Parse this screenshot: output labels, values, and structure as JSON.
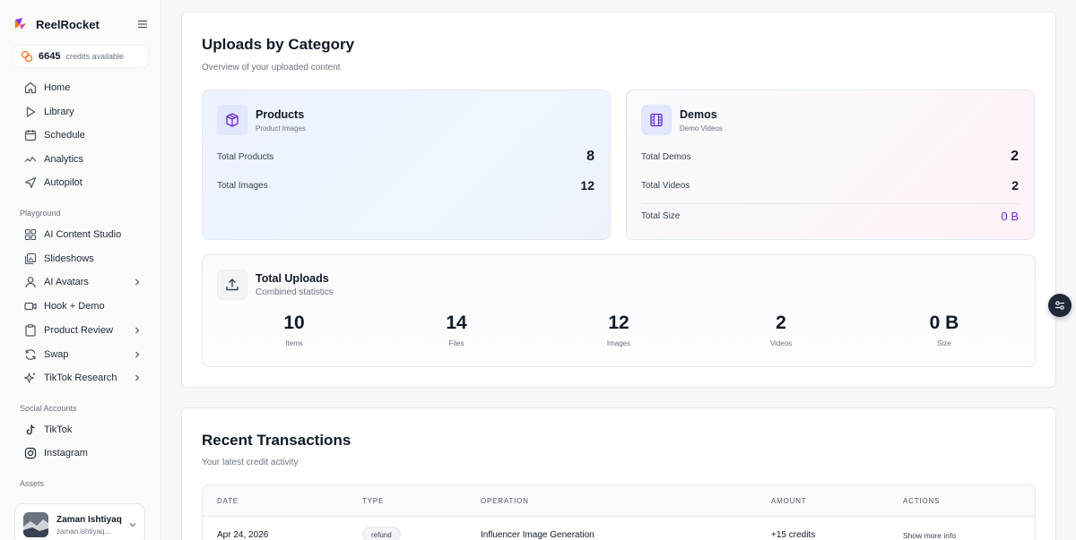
{
  "sidebar": {
    "brand": "ReelRocket",
    "credits": {
      "amount": "6645",
      "label": "credits available"
    },
    "nav": [
      {
        "label": "Home",
        "icon": "home-icon"
      },
      {
        "label": "Library",
        "icon": "play-icon"
      },
      {
        "label": "Schedule",
        "icon": "calendar-icon"
      },
      {
        "label": "Analytics",
        "icon": "trend-icon"
      },
      {
        "label": "Autopilot",
        "icon": "send-icon"
      }
    ],
    "sections": {
      "playground": "Playground",
      "social": "Social Accounts",
      "assets": "Assets"
    },
    "playground": [
      {
        "label": "AI Content Studio",
        "icon": "grid-icon",
        "chevron": false
      },
      {
        "label": "Slideshows",
        "icon": "images-icon",
        "chevron": false
      },
      {
        "label": "AI Avatars",
        "icon": "user-icon",
        "chevron": true
      },
      {
        "label": "Hook + Demo",
        "icon": "video-icon",
        "chevron": false
      },
      {
        "label": "Product Review",
        "icon": "clipboard-icon",
        "chevron": true
      },
      {
        "label": "Swap",
        "icon": "refresh-icon",
        "chevron": true
      },
      {
        "label": "TikTok Research",
        "icon": "sparkles-icon",
        "chevron": true
      }
    ],
    "social": [
      {
        "label": "TikTok",
        "icon": "tiktok-icon"
      },
      {
        "label": "Instagram",
        "icon": "instagram-icon"
      }
    ],
    "user": {
      "name": "Zaman Ishtiyaq",
      "email": "zaman.ishtiyaq..."
    }
  },
  "uploads": {
    "title": "Uploads by Category",
    "subtitle": "Overview of your uploaded content",
    "products": {
      "title": "Products",
      "subtitle": "Product Images",
      "stats": [
        {
          "label": "Total Products",
          "value": "8"
        },
        {
          "label": "Total Images",
          "value": "12"
        }
      ]
    },
    "demos": {
      "title": "Demos",
      "subtitle": "Demo Videos",
      "stats": [
        {
          "label": "Total Demos",
          "value": "2"
        },
        {
          "label": "Total Videos",
          "value": "2"
        },
        {
          "label": "Total Size",
          "value": "0 B"
        }
      ]
    },
    "total": {
      "title": "Total Uploads",
      "subtitle": "Combined statistics",
      "metrics": [
        {
          "value": "10",
          "label": "Items"
        },
        {
          "value": "14",
          "label": "Files"
        },
        {
          "value": "12",
          "label": "Images"
        },
        {
          "value": "2",
          "label": "Videos"
        },
        {
          "value": "0 B",
          "label": "Size"
        }
      ]
    }
  },
  "transactions": {
    "title": "Recent Transactions",
    "subtitle": "Your latest credit activity",
    "columns": [
      "DATE",
      "TYPE",
      "OPERATION",
      "AMOUNT",
      "ACTIONS"
    ],
    "rows": [
      {
        "date": "Apr 24, 2026",
        "type": "refund",
        "operation": "Influencer Image Generation",
        "amount": "+15 credits",
        "action": "Show more info"
      }
    ]
  },
  "colors": {
    "accent": "#6d28d9",
    "brand_orange": "#f97316",
    "brand_purple": "#7c3aed"
  }
}
